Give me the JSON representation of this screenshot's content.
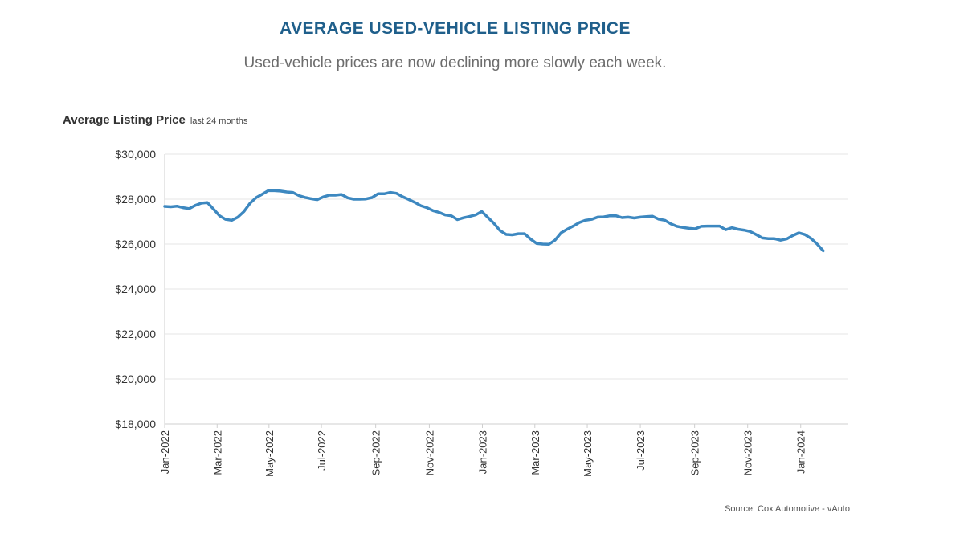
{
  "header": {
    "title": "AVERAGE USED-VEHICLE LISTING PRICE",
    "subtitle": "Used-vehicle prices are now declining more slowly each week."
  },
  "chart_heading": {
    "main": "Average Listing Price",
    "sub": "last 24 months"
  },
  "source": "Source: Cox Automotive - vAuto",
  "colors": {
    "title": "#1f5f8b",
    "line": "#3d88c0",
    "grid": "#e6e6e6"
  },
  "chart_data": {
    "type": "line",
    "title": "Average Listing Price",
    "subtitle": "last 24 months",
    "xlabel": "",
    "ylabel": "",
    "ylim": [
      18000,
      30000
    ],
    "yticks": [
      18000,
      20000,
      22000,
      24000,
      26000,
      28000,
      30000
    ],
    "ytick_labels": [
      "$18,000",
      "$20,000",
      "$22,000",
      "$24,000",
      "$26,000",
      "$28,000",
      "$30,000"
    ],
    "x_domain_weeks": [
      0,
      110
    ],
    "xticks": [
      {
        "label": "Jan-2022",
        "week": 0
      },
      {
        "label": "Mar-2022",
        "week": 8.6
      },
      {
        "label": "May-2022",
        "week": 17.1
      },
      {
        "label": "Jul-2022",
        "week": 25.7
      },
      {
        "label": "Sep-2022",
        "week": 34.6
      },
      {
        "label": "Nov-2022",
        "week": 43.4
      },
      {
        "label": "Jan-2023",
        "week": 52.1
      },
      {
        "label": "Mar-2023",
        "week": 60.7
      },
      {
        "label": "May-2023",
        "week": 69.3
      },
      {
        "label": "Jul-2023",
        "week": 78.0
      },
      {
        "label": "Sep-2023",
        "week": 86.9
      },
      {
        "label": "Nov-2023",
        "week": 95.6
      },
      {
        "label": "Jan-2024",
        "week": 104.3
      }
    ],
    "series": [
      {
        "name": "Average Listing Price",
        "start": "Jan-2022",
        "interval": "week",
        "values": [
          27680,
          27660,
          27690,
          27620,
          27580,
          27720,
          27820,
          27850,
          27560,
          27260,
          27100,
          27060,
          27200,
          27450,
          27820,
          28070,
          28220,
          28380,
          28380,
          28360,
          28320,
          28300,
          28160,
          28080,
          28020,
          27980,
          28100,
          28180,
          28180,
          28210,
          28060,
          28000,
          28000,
          28010,
          28070,
          28240,
          28240,
          28300,
          28260,
          28110,
          27990,
          27860,
          27710,
          27620,
          27490,
          27410,
          27300,
          27260,
          27090,
          27170,
          27230,
          27300,
          27450,
          27190,
          26920,
          26600,
          26430,
          26410,
          26460,
          26460,
          26220,
          26030,
          26000,
          25990,
          26170,
          26500,
          26660,
          26800,
          26960,
          27060,
          27100,
          27200,
          27210,
          27260,
          27260,
          27180,
          27200,
          27160,
          27200,
          27220,
          27240,
          27110,
          27060,
          26900,
          26790,
          26740,
          26700,
          26680,
          26790,
          26800,
          26800,
          26800,
          26640,
          26730,
          26660,
          26620,
          26560,
          26420,
          26270,
          26240,
          26240,
          26170,
          26230,
          26380,
          26500,
          26420,
          26250,
          26000,
          25700
        ]
      }
    ],
    "grid": true,
    "legend": "none"
  }
}
